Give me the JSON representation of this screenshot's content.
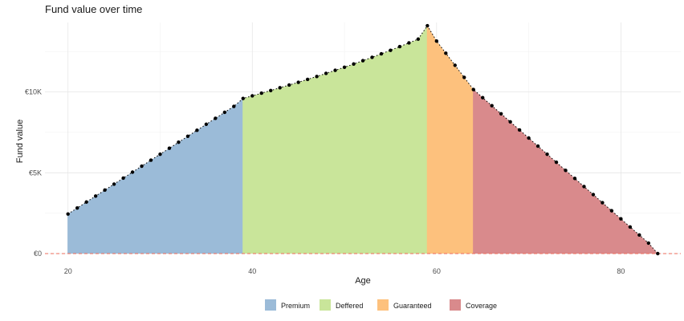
{
  "chart_data": {
    "type": "area",
    "title": "Fund value over time",
    "xlabel": "Age",
    "ylabel": "Fund value",
    "xlim": [
      17.5,
      86.5
    ],
    "ylim": [
      0,
      14300
    ],
    "x_ticks": [
      20,
      40,
      60,
      80
    ],
    "y_ticks": [
      0,
      5000,
      10000
    ],
    "y_tick_labels": [
      "€0",
      "€5K",
      "€10K"
    ],
    "reference_line": {
      "y": 0,
      "style": "dashed",
      "color": "#ee6b5b"
    },
    "grid": true,
    "legend_position": "bottom",
    "phases": [
      {
        "name": "Premium",
        "x_start": 20,
        "x_end": 39,
        "color": "#9bbbd8"
      },
      {
        "name": "Deffered",
        "x_start": 39,
        "x_end": 59,
        "color": "#c9e59a"
      },
      {
        "name": "Guaranteed",
        "x_start": 59,
        "x_end": 64,
        "color": "#fdc17d"
      },
      {
        "name": "Coverage",
        "x_start": 64,
        "x_end": 84,
        "color": "#d98a8c"
      }
    ],
    "series": [
      {
        "x": [
          20,
          21,
          22,
          23,
          24,
          25,
          26,
          27,
          28,
          29,
          30,
          31,
          32,
          33,
          34,
          35,
          36,
          37,
          38,
          39,
          40,
          41,
          42,
          43,
          44,
          45,
          46,
          47,
          48,
          49,
          50,
          51,
          52,
          53,
          54,
          55,
          56,
          57,
          58,
          59,
          60,
          61,
          62,
          63,
          64,
          65,
          66,
          67,
          68,
          69,
          70,
          71,
          72,
          73,
          74,
          75,
          76,
          77,
          78,
          79,
          80,
          81,
          82,
          83,
          84
        ],
        "values": [
          2450,
          2820,
          3190,
          3560,
          3930,
          4300,
          4670,
          5040,
          5410,
          5780,
          6150,
          6520,
          6890,
          7260,
          7630,
          8000,
          8370,
          8740,
          9110,
          9600,
          9760,
          9925,
          10090,
          10260,
          10430,
          10600,
          10780,
          10960,
          11150,
          11340,
          11530,
          11730,
          11935,
          12145,
          12360,
          12580,
          12805,
          13035,
          13270,
          14100,
          13150,
          12400,
          11650,
          10900,
          10150,
          9650,
          9150,
          8650,
          8150,
          7650,
          7150,
          6650,
          6150,
          5650,
          5150,
          4650,
          4150,
          3650,
          3150,
          2650,
          2150,
          1650,
          1150,
          650,
          0
        ]
      }
    ]
  }
}
